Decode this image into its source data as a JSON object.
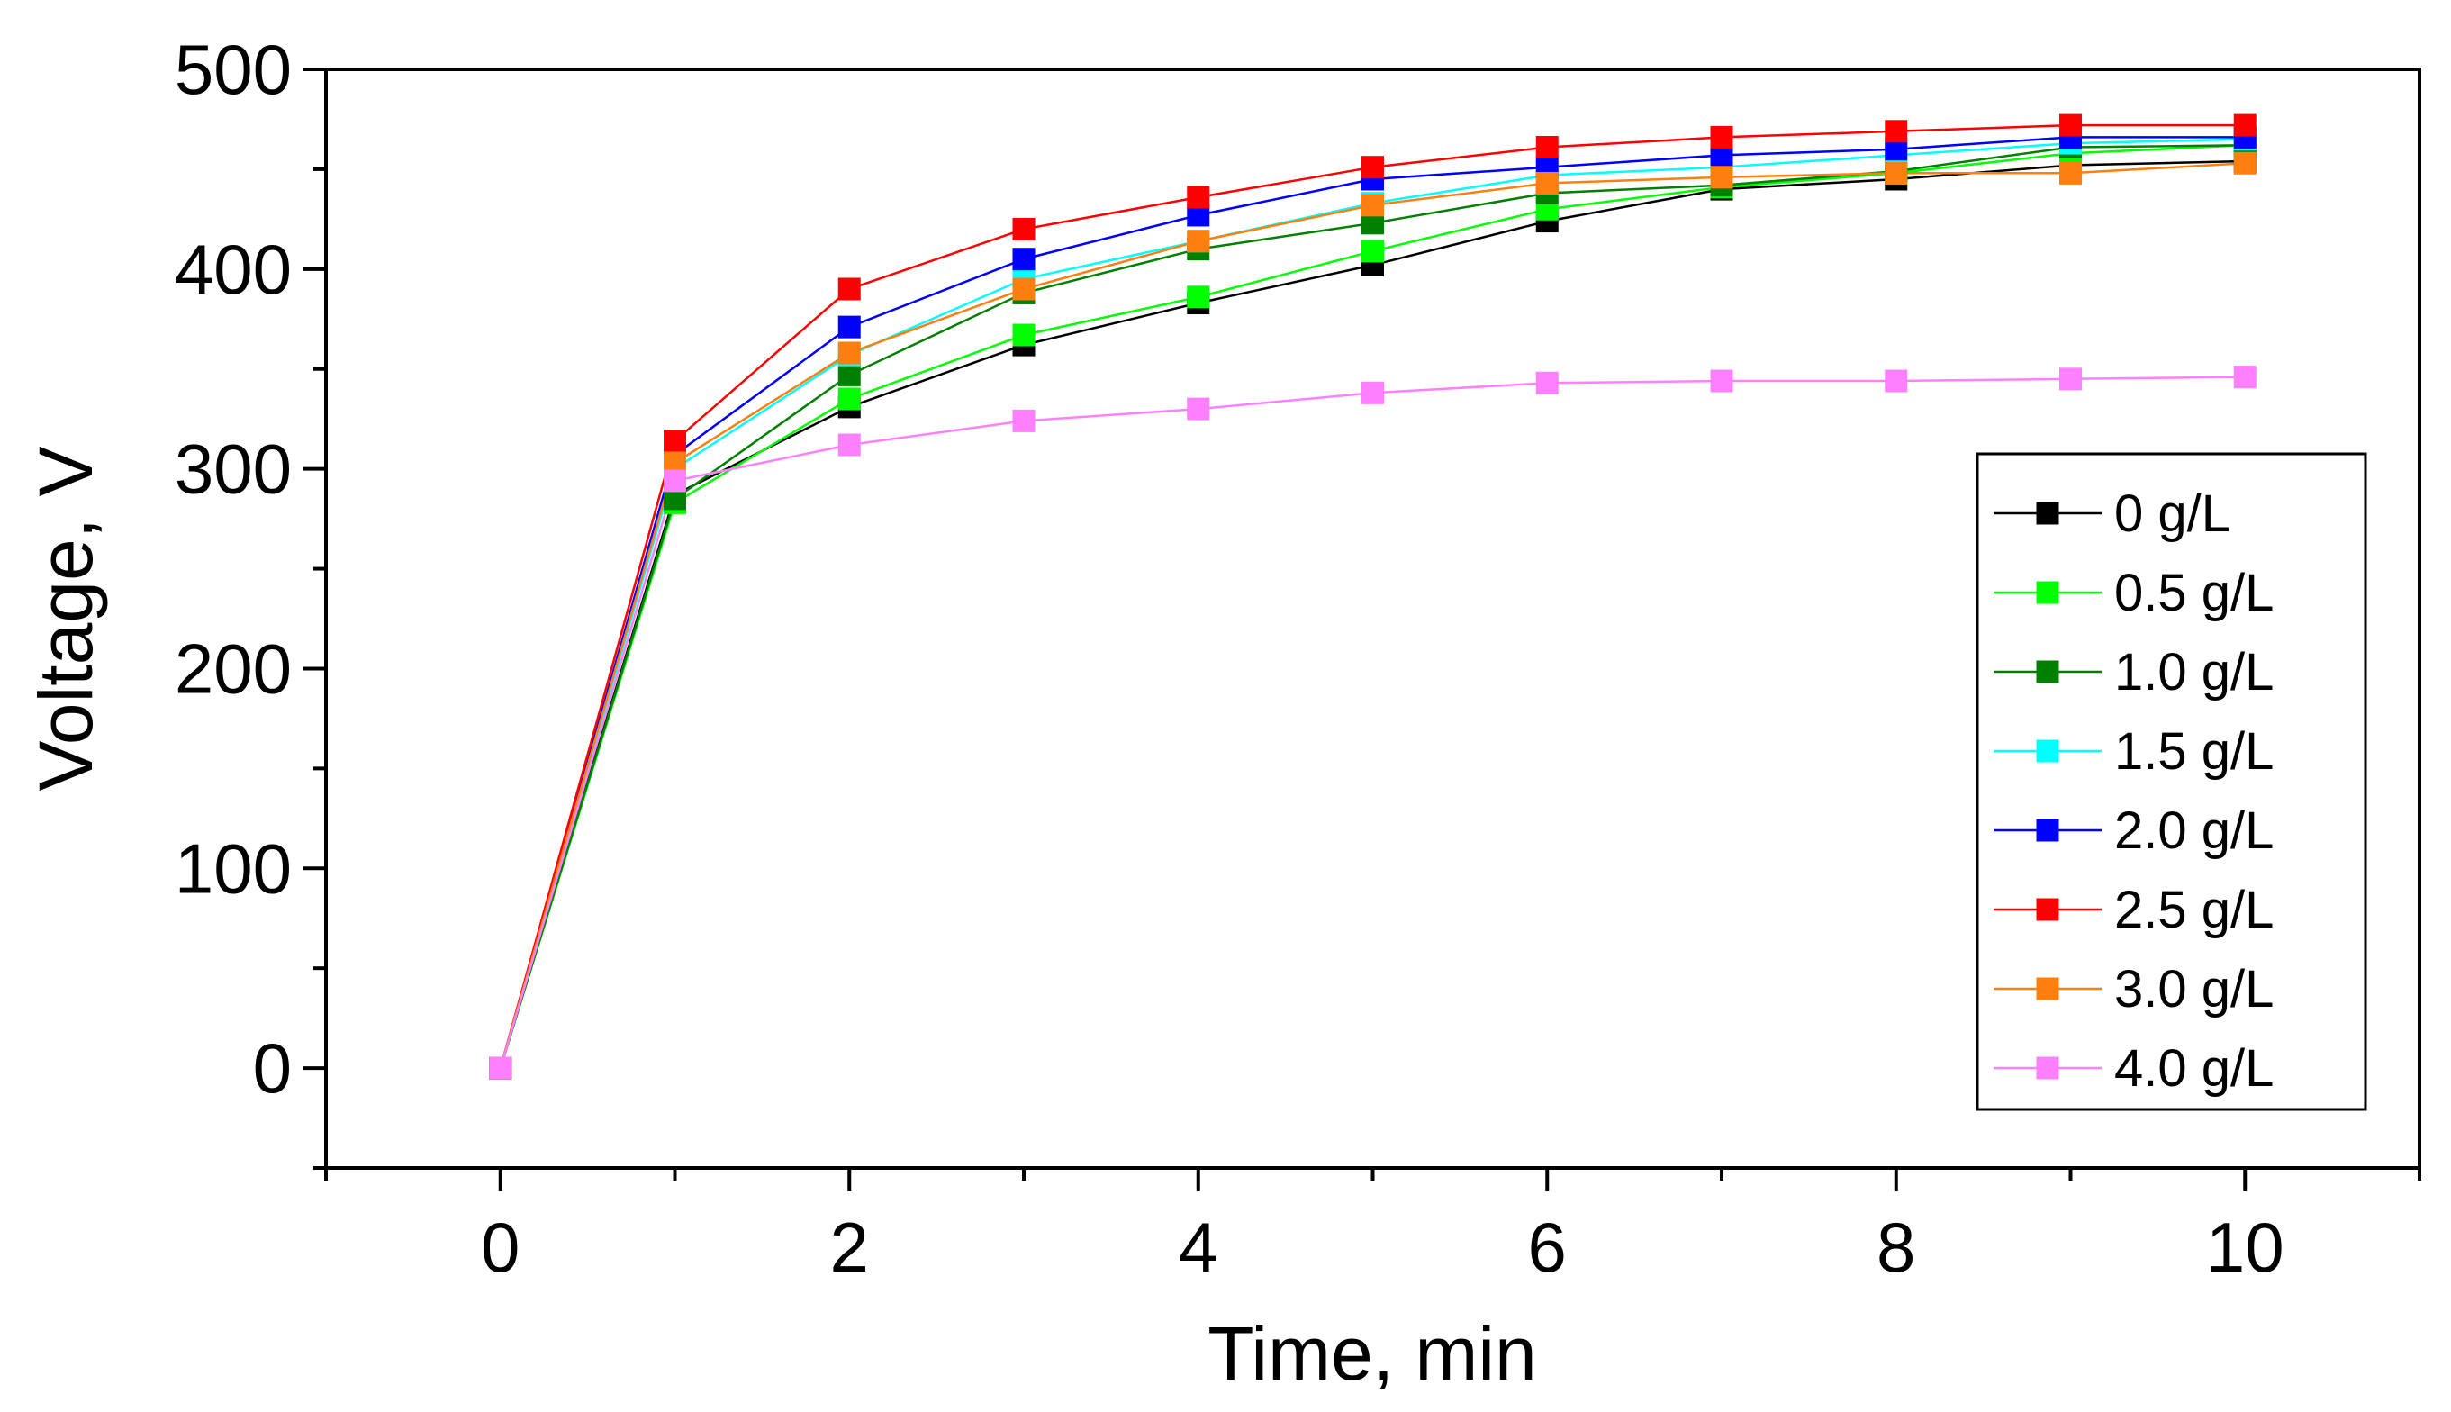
{
  "chart_data": {
    "type": "line",
    "title": "",
    "xlabel": "Time, min",
    "ylabel": "Voltage, V",
    "xlim": [
      -1,
      11
    ],
    "ylim": [
      -50,
      500
    ],
    "x_ticks": [
      0,
      2,
      4,
      6,
      8,
      10
    ],
    "y_ticks": [
      0,
      100,
      200,
      300,
      400,
      500
    ],
    "grid": false,
    "legend_position": "right",
    "x": [
      0,
      1,
      2,
      3,
      4,
      5,
      6,
      7,
      8,
      9,
      10
    ],
    "series": [
      {
        "name": "0 g/L",
        "color": "#000000",
        "values": [
          0,
          287,
          331,
          362,
          383,
          402,
          424,
          440,
          445,
          452,
          454
        ]
      },
      {
        "name": "0.5 g/L",
        "color": "#00ff00",
        "values": [
          0,
          283,
          335,
          367,
          386,
          409,
          430,
          441,
          448,
          458,
          462
        ]
      },
      {
        "name": "1.0 g/L",
        "color": "#008000",
        "values": [
          0,
          285,
          347,
          388,
          410,
          423,
          438,
          442,
          449,
          461,
          462
        ]
      },
      {
        "name": "1.5 g/L",
        "color": "#00ffff",
        "values": [
          0,
          300,
          357,
          395,
          414,
          433,
          447,
          451,
          457,
          463,
          465
        ]
      },
      {
        "name": "2.0 g/L",
        "color": "#0000ff",
        "values": [
          0,
          307,
          371,
          405,
          427,
          445,
          451,
          457,
          460,
          466,
          466
        ]
      },
      {
        "name": "2.5 g/L",
        "color": "#ff0000",
        "values": [
          0,
          314,
          390,
          420,
          436,
          451,
          461,
          466,
          469,
          472,
          472
        ]
      },
      {
        "name": "3.0 g/L",
        "color": "#ff7f0e",
        "values": [
          0,
          303,
          358,
          390,
          414,
          432,
          443,
          446,
          448,
          448,
          453
        ]
      },
      {
        "name": "4.0 g/L",
        "color": "#ff80ff",
        "values": [
          0,
          294,
          312,
          324,
          330,
          338,
          343,
          344,
          344,
          345,
          346
        ]
      }
    ]
  }
}
